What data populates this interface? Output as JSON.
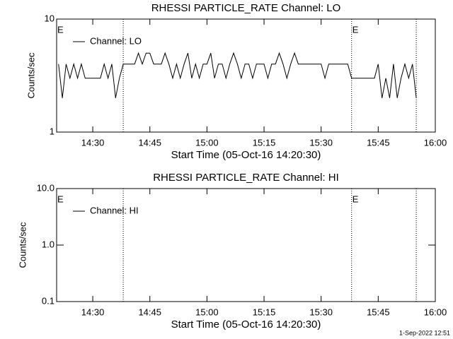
{
  "chart_data": [
    {
      "type": "line",
      "title": "RHESSI PARTICLE_RATE Channel: LO",
      "xlabel": "Start Time (05-Oct-16 14:20:30)",
      "ylabel": "Counts/sec",
      "log_y": true,
      "ylim": [
        1,
        10
      ],
      "yticks": [
        1,
        10
      ],
      "xlim": [
        "14:20:30",
        "16:00:00"
      ],
      "xticks": [
        "14:30",
        "14:45",
        "15:00",
        "15:15",
        "15:30",
        "15:45",
        "16:00"
      ],
      "vlines": [
        "14:38",
        "15:38",
        "15:55"
      ],
      "annotations": [
        {
          "text": "E",
          "x": "14:20:30"
        },
        {
          "text": "E",
          "x": "15:38"
        }
      ],
      "legend": "upper left",
      "x": [
        "14:21",
        "14:22",
        "14:23",
        "14:24",
        "14:25",
        "14:26",
        "14:27",
        "14:28",
        "14:29",
        "14:30",
        "14:31",
        "14:32",
        "14:33",
        "14:34",
        "14:35",
        "14:36",
        "14:37",
        "14:38",
        "14:39",
        "14:40",
        "14:41",
        "14:42",
        "14:43",
        "14:44",
        "14:45",
        "14:46",
        "14:47",
        "14:48",
        "14:49",
        "14:50",
        "14:51",
        "14:52",
        "14:53",
        "14:54",
        "14:55",
        "14:56",
        "14:57",
        "14:58",
        "14:59",
        "15:00",
        "15:01",
        "15:02",
        "15:03",
        "15:04",
        "15:05",
        "15:06",
        "15:07",
        "15:08",
        "15:09",
        "15:10",
        "15:11",
        "15:12",
        "15:13",
        "15:14",
        "15:15",
        "15:16",
        "15:17",
        "15:18",
        "15:19",
        "15:20",
        "15:21",
        "15:22",
        "15:23",
        "15:24",
        "15:25",
        "15:26",
        "15:27",
        "15:28",
        "15:29",
        "15:30",
        "15:31",
        "15:32",
        "15:33",
        "15:34",
        "15:35",
        "15:36",
        "15:37",
        "15:38",
        "15:39",
        "15:40",
        "15:41",
        "15:42",
        "15:43",
        "15:44",
        "15:45",
        "15:46",
        "15:47",
        "15:48",
        "15:49",
        "15:50",
        "15:51",
        "15:52",
        "15:53",
        "15:54",
        "15:55"
      ],
      "series": [
        {
          "name": "Channel: LO",
          "color": "#000000",
          "values": [
            4,
            2,
            4,
            3,
            4,
            3,
            4,
            3,
            3,
            3,
            3,
            3,
            4,
            3,
            4,
            2,
            3,
            4,
            4,
            4,
            4,
            5,
            4,
            5,
            5,
            4,
            4,
            4,
            5,
            4,
            3,
            4,
            3,
            4,
            5,
            3,
            4,
            3,
            4,
            4,
            5,
            3,
            4,
            4,
            3,
            4,
            5,
            4,
            3,
            4,
            4,
            3,
            4,
            4,
            4,
            3,
            4,
            4,
            5,
            4,
            3,
            4,
            5,
            4,
            4,
            4,
            4,
            4,
            4,
            4,
            3,
            4,
            4,
            4,
            4,
            4,
            4,
            3,
            3,
            3,
            3,
            3,
            3,
            3,
            4,
            2,
            3,
            2,
            4,
            2,
            3,
            4,
            3,
            4,
            2
          ]
        }
      ]
    },
    {
      "type": "line",
      "title": "RHESSI PARTICLE_RATE Channel: HI",
      "xlabel": "Start Time (05-Oct-16 14:20:30)",
      "ylabel": "Counts/sec",
      "log_y": true,
      "ylim": [
        0.1,
        10
      ],
      "yticks": [
        0.1,
        {
          "value": 1,
          "label": "1.0"
        },
        {
          "value": 10,
          "label": "10.0"
        }
      ],
      "xlim": [
        "14:20:30",
        "16:00:00"
      ],
      "xticks": [
        "14:30",
        "14:45",
        "15:00",
        "15:15",
        "15:30",
        "15:45",
        "16:00"
      ],
      "vlines": [
        "14:38",
        "15:38",
        "15:55"
      ],
      "annotations": [
        {
          "text": "E",
          "x": "14:20:30"
        },
        {
          "text": "E",
          "x": "15:38"
        }
      ],
      "legend": "upper left",
      "x": [],
      "series": [
        {
          "name": "Channel: HI",
          "color": "#000000",
          "values": []
        }
      ]
    }
  ],
  "footer": "1-Sep-2022 12:51"
}
